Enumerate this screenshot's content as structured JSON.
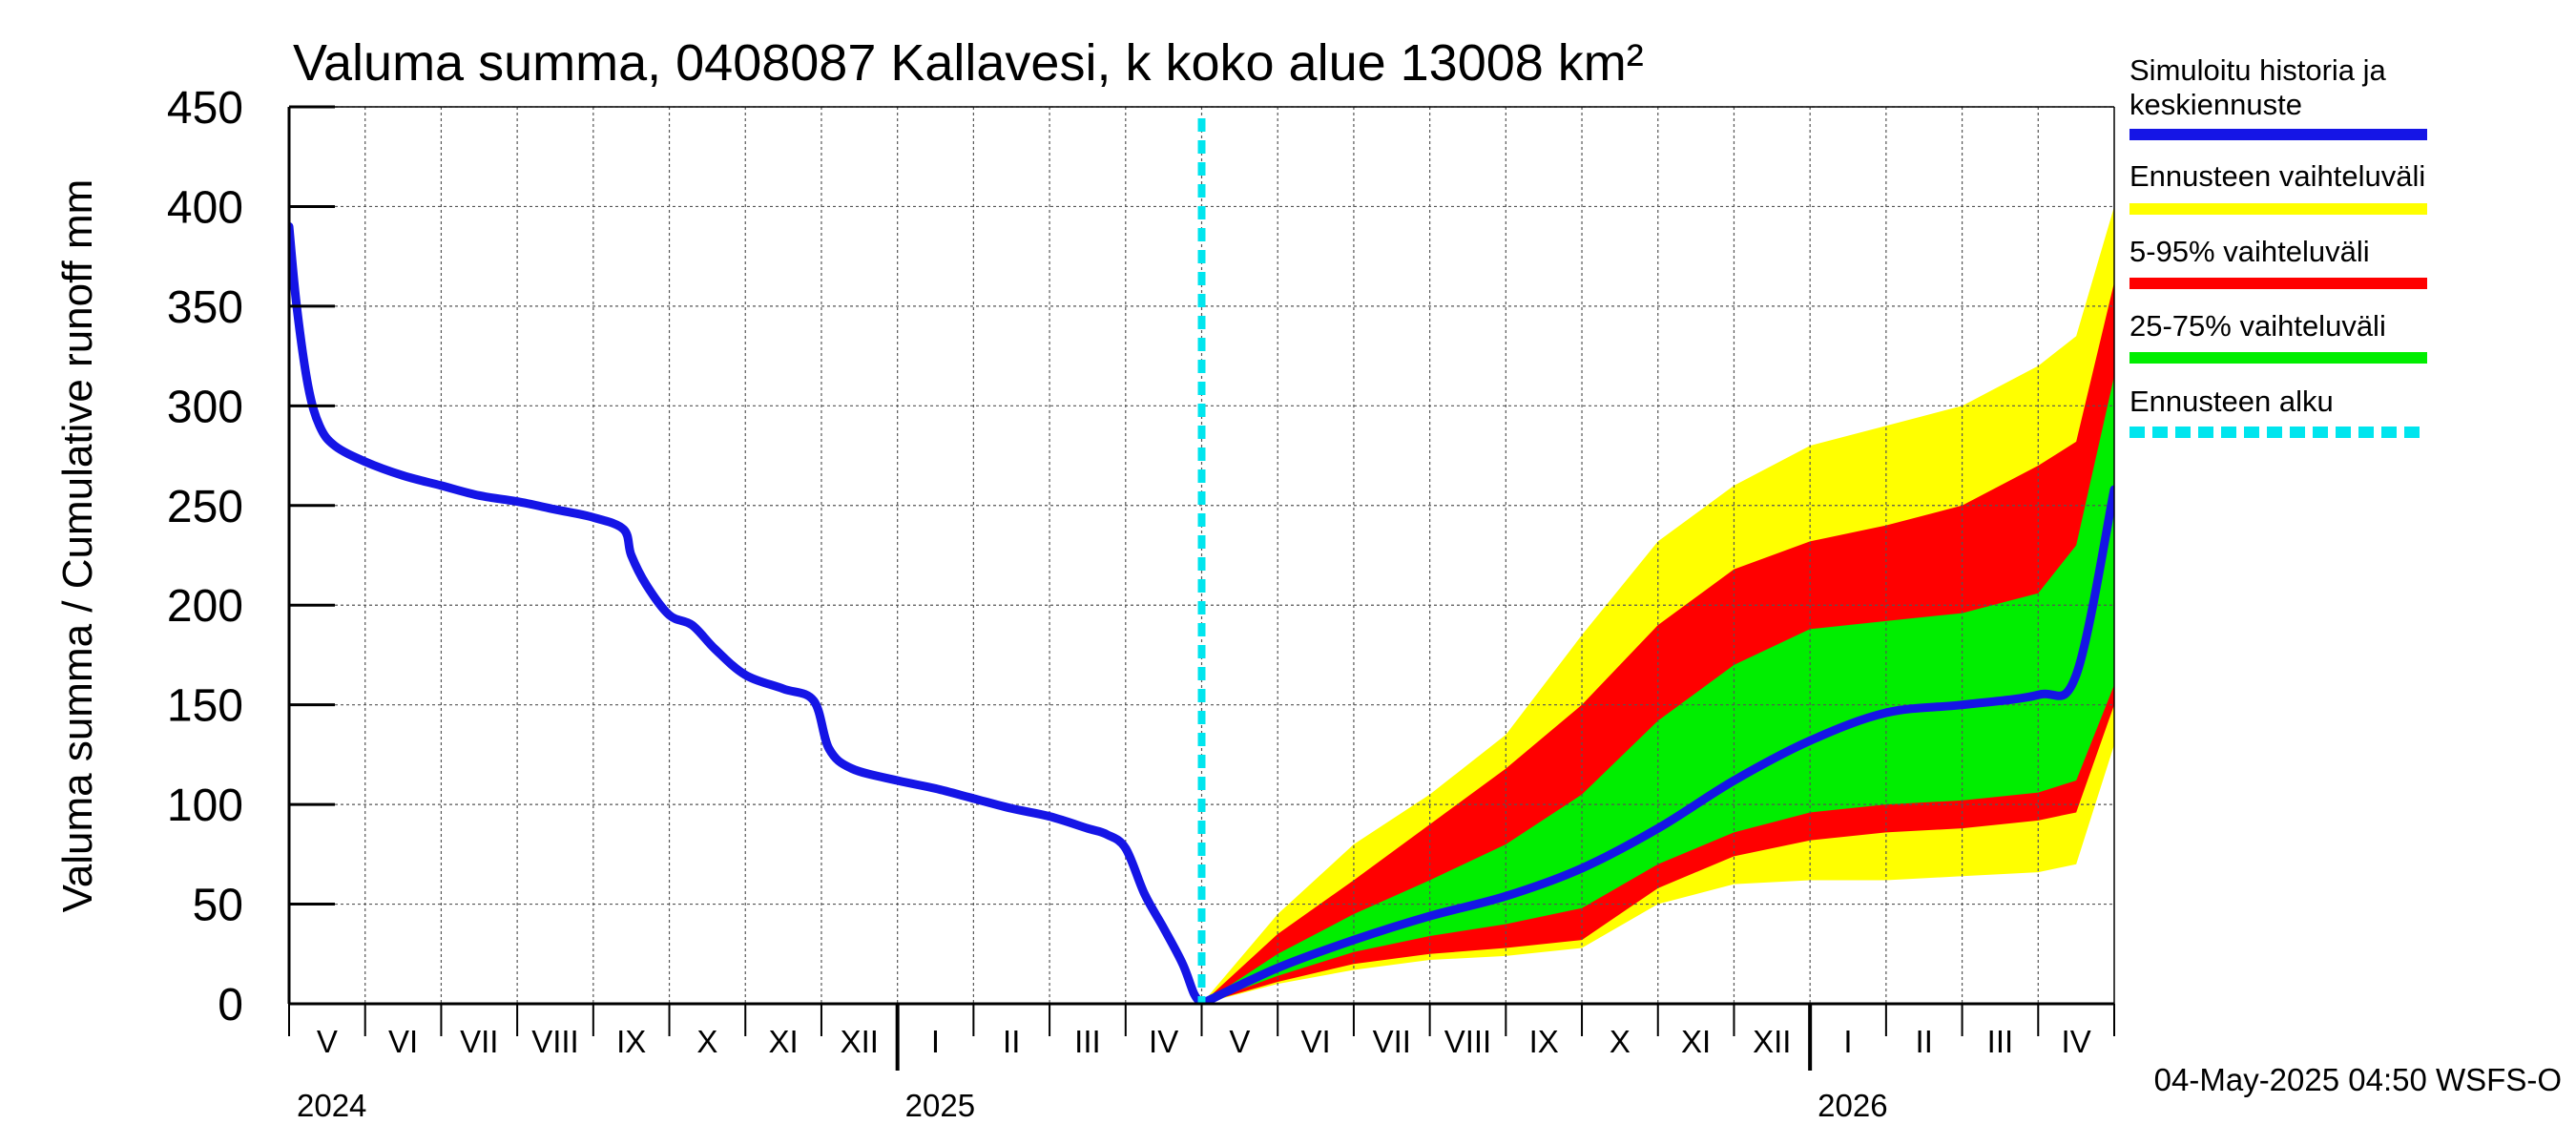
{
  "chart_data": {
    "type": "area",
    "title": "Valuma summa, 0408087 Kallavesi, k koko alue 13008 km²",
    "ylabel": "Valuma summa / Cumulative runoff    mm",
    "ylim": [
      0,
      450
    ],
    "yticks": [
      0,
      50,
      100,
      150,
      200,
      250,
      300,
      350,
      400,
      450
    ],
    "grid": true,
    "months": [
      "V",
      "VI",
      "VII",
      "VIII",
      "IX",
      "X",
      "XI",
      "XII",
      "I",
      "II",
      "III",
      "IV",
      "V",
      "VI",
      "VII",
      "VIII",
      "IX",
      "X",
      "XI",
      "XII",
      "I",
      "II",
      "III",
      "IV"
    ],
    "years": [
      "2024",
      "2025",
      "2026"
    ],
    "forecast_start": "2025-05-04",
    "footer": "04-May-2025 04:50 WSFS-O",
    "legend": [
      {
        "label": "Simuloitu historia ja keskiennuste",
        "color": "#1515e6",
        "style": "solid"
      },
      {
        "label": "Ennusteen vaihteluväli",
        "color": "#ffff00",
        "style": "solid"
      },
      {
        "label": "5-95% vaihteluväli",
        "color": "#ff0000",
        "style": "solid"
      },
      {
        "label": "25-75% vaihteluväli",
        "color": "#00ee00",
        "style": "solid"
      },
      {
        "label": "Ennusteen alku",
        "color": "#00e5ee",
        "style": "dashed"
      }
    ],
    "colors": {
      "history": "#1515e6",
      "range": "#ffff00",
      "p5_95": "#ff0000",
      "p25_75": "#00ee00",
      "forecast_line": "#00e5ee"
    },
    "history": {
      "name": "Simuloitu historia",
      "x_month": [
        0,
        0.1,
        0.25,
        0.4,
        0.6,
        1.0,
        1.5,
        2.0,
        2.5,
        3.0,
        3.5,
        4.0,
        4.4,
        4.5,
        4.7,
        5.0,
        5.3,
        5.6,
        6.0,
        6.5,
        6.9,
        7.1,
        7.4,
        8.0,
        8.5,
        9.0,
        9.5,
        10.0,
        10.5,
        10.75,
        11.0,
        11.25,
        11.5,
        11.75,
        11.9,
        12.0
      ],
      "values": [
        390,
        350,
        310,
        290,
        280,
        272,
        265,
        260,
        255,
        252,
        248,
        244,
        238,
        225,
        210,
        195,
        190,
        178,
        165,
        158,
        152,
        128,
        118,
        112,
        108,
        103,
        98,
        94,
        88,
        85,
        78,
        55,
        38,
        20,
        5,
        0
      ]
    },
    "forecast": {
      "x_month": [
        12,
        13,
        14,
        15,
        16,
        17,
        18,
        19,
        20,
        21,
        22,
        23,
        23.5,
        24
      ],
      "median": [
        0,
        18,
        32,
        44,
        54,
        68,
        88,
        112,
        132,
        146,
        150,
        155,
        165,
        258
      ],
      "p25": [
        0,
        14,
        26,
        34,
        40,
        48,
        70,
        86,
        96,
        100,
        102,
        106,
        112,
        160
      ],
      "p75": [
        0,
        25,
        45,
        62,
        80,
        105,
        142,
        170,
        188,
        192,
        196,
        206,
        230,
        315
      ],
      "p5": [
        0,
        11,
        20,
        25,
        28,
        32,
        58,
        74,
        82,
        86,
        88,
        92,
        96,
        150
      ],
      "p95": [
        0,
        35,
        62,
        90,
        118,
        150,
        190,
        218,
        232,
        240,
        250,
        270,
        282,
        362
      ],
      "min": [
        0,
        10,
        17,
        22,
        24,
        28,
        50,
        60,
        62,
        62,
        64,
        66,
        70,
        130
      ],
      "max": [
        0,
        45,
        80,
        105,
        135,
        185,
        232,
        260,
        280,
        290,
        300,
        320,
        335,
        400
      ]
    }
  }
}
